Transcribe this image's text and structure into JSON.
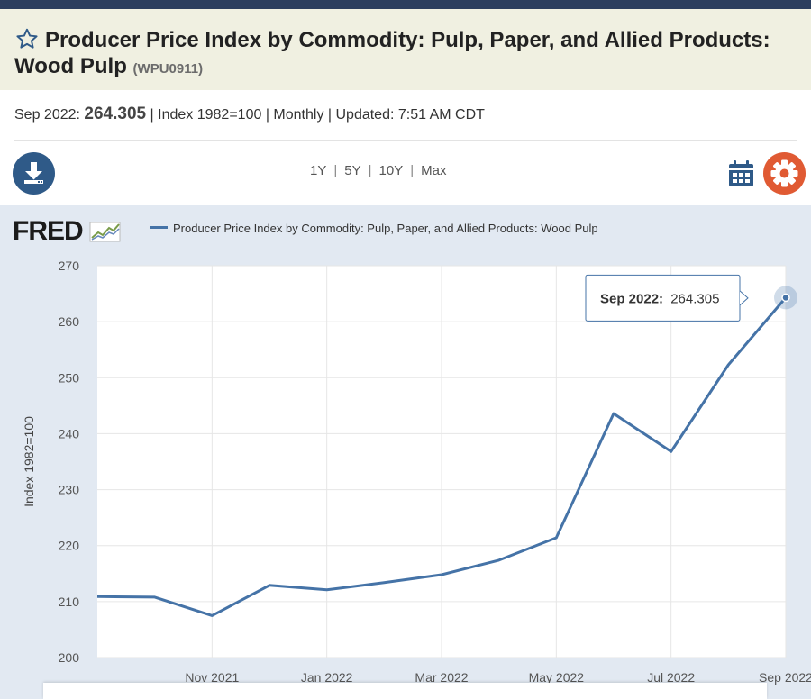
{
  "header": {
    "title": "Producer Price Index by Commodity: Pulp, Paper, and Allied Products: Wood Pulp",
    "title_line1": "Producer Price Index by Commodity: Pulp, Paper, and Allied Products:",
    "title_line2": "Wood Pulp",
    "series_id": "(WPU0911)"
  },
  "meta": {
    "date_label": "Sep 2022:",
    "value": "264.305",
    "details": "| Index 1982=100 | Monthly | Updated: 7:51 AM CDT"
  },
  "toolbar": {
    "ranges": [
      "1Y",
      "5Y",
      "10Y",
      "Max"
    ],
    "icons": [
      "download-icon",
      "calendar-icon",
      "gear-icon",
      "star-icon"
    ]
  },
  "brand": {
    "logo_text": "FRED"
  },
  "legend": {
    "label": "Producer Price Index by Commodity: Pulp, Paper, and Allied Products: Wood Pulp"
  },
  "colors": {
    "series": "#4573a7",
    "accent_orange": "#e05a33",
    "accent_blue": "#2f5a88",
    "title_bg": "#f0f0e1",
    "panel_bg": "#e2e9f2"
  },
  "tooltip": {
    "date": "Sep 2022:",
    "value": "264.305"
  },
  "chart_data": {
    "type": "line",
    "ylabel": "Index 1982=100",
    "ylim": [
      200,
      270
    ],
    "yticks": [
      200,
      210,
      220,
      230,
      240,
      250,
      260,
      270
    ],
    "xtick_labels": [
      "Nov 2021",
      "Jan 2022",
      "Mar 2022",
      "May 2022",
      "Jul 2022",
      "Sep 2022"
    ],
    "xtick_dates": [
      "2021-11",
      "2022-01",
      "2022-03",
      "2022-05",
      "2022-07",
      "2022-09"
    ],
    "x": [
      "2021-09",
      "2021-10",
      "2021-11",
      "2021-12",
      "2022-01",
      "2022-02",
      "2022-03",
      "2022-04",
      "2022-05",
      "2022-06",
      "2022-07",
      "2022-08",
      "2022-09"
    ],
    "series": [
      {
        "name": "Producer Price Index by Commodity: Pulp, Paper, and Allied Products: Wood Pulp",
        "values": [
          210.9,
          210.8,
          207.5,
          212.9,
          212.1,
          213.4,
          214.8,
          217.4,
          221.4,
          243.6,
          236.8,
          252.3,
          264.305
        ]
      }
    ],
    "grid": true
  }
}
